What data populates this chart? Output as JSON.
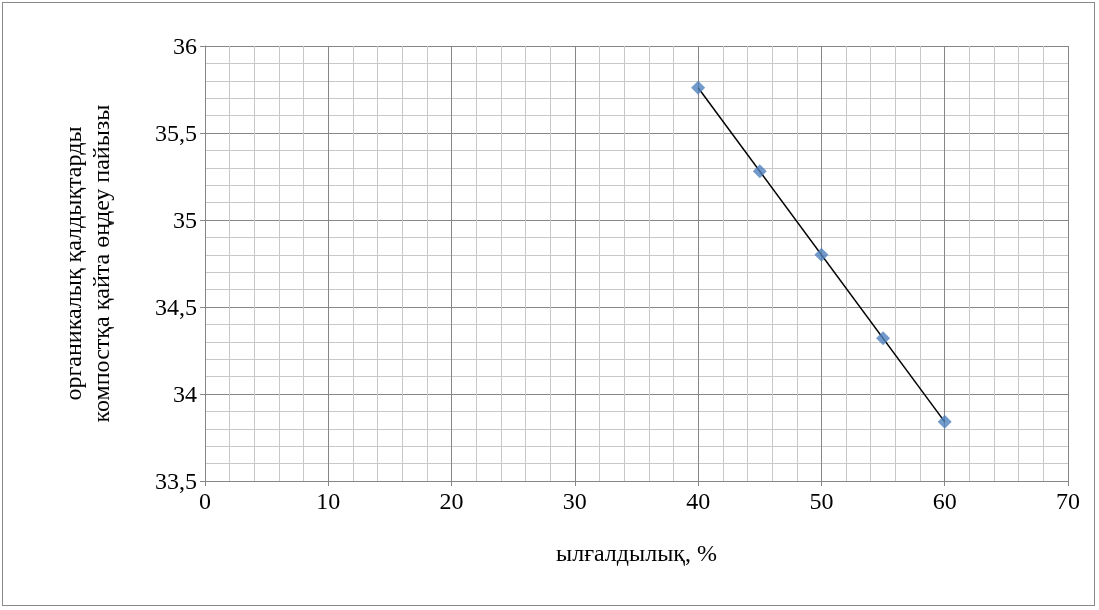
{
  "chart_data": {
    "type": "scatter",
    "xlabel": "ылғалдылық, %",
    "ylabel": "органикалық қалдықтарды\nкомпостқа қайта өңдеу пайызы",
    "x": [
      40,
      45,
      50,
      55,
      60
    ],
    "series": [
      {
        "color": "#4f81bd",
        "marker": "diamond",
        "values": [
          35.76,
          35.28,
          34.8,
          34.32,
          33.84
        ]
      },
      {
        "type": "line",
        "color": "#000000",
        "marker": "none",
        "line_style": "solid",
        "x": [
          40,
          60
        ],
        "values": [
          35.76,
          33.84
        ]
      }
    ],
    "xlim": [
      0,
      70
    ],
    "xticks": [
      0,
      10,
      20,
      30,
      40,
      50,
      60,
      70
    ],
    "ylim": [
      33.5,
      36
    ],
    "yticks": [
      {
        "value": 33.5,
        "label": "33,5"
      },
      34,
      {
        "value": 34.5,
        "label": "34,5"
      },
      35,
      {
        "value": 35.5,
        "label": "35,5"
      },
      36
    ],
    "grid": true
  }
}
